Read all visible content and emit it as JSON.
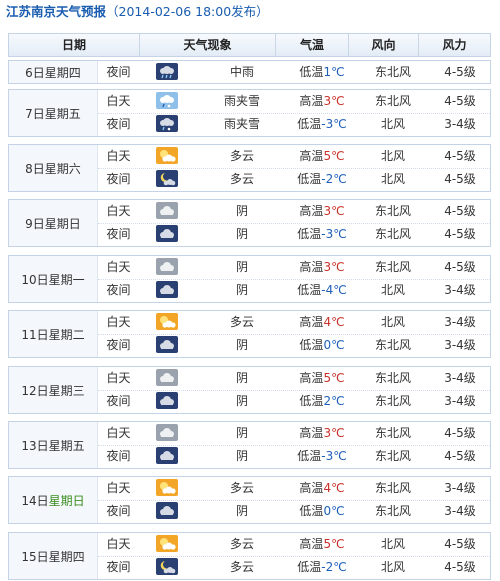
{
  "title": {
    "main": "江苏南京天气预报",
    "sub": "（2014-02-06 18:00发布）"
  },
  "header": {
    "date": "日期",
    "weather": "天气现象",
    "temp": "气温",
    "wind_dir": "风向",
    "wind_force": "风力"
  },
  "days": [
    {
      "date": "6日星期四",
      "rows": [
        {
          "period": "夜间",
          "icon": "night-rain-icon",
          "desc": "中雨",
          "temp_label": "低温",
          "temp": "1℃",
          "type": "low",
          "wind": "东北风",
          "force": "4-5级"
        }
      ]
    },
    {
      "date": "7日星期五",
      "rows": [
        {
          "period": "白天",
          "icon": "sleet-icon",
          "desc": "雨夹雪",
          "temp_label": "高温",
          "temp": "3℃",
          "type": "high",
          "wind": "东北风",
          "force": "4-5级"
        },
        {
          "period": "夜间",
          "icon": "night-sleet-icon",
          "desc": "雨夹雪",
          "temp_label": "低温",
          "temp": "-3℃",
          "type": "low",
          "wind": "北风",
          "force": "3-4级"
        }
      ]
    },
    {
      "date": "8日星期六",
      "rows": [
        {
          "period": "白天",
          "icon": "partly-cloudy-icon",
          "desc": "多云",
          "temp_label": "高温",
          "temp": "5℃",
          "type": "high",
          "wind": "北风",
          "force": "4-5级"
        },
        {
          "period": "夜间",
          "icon": "night-partly-cloudy-icon",
          "desc": "多云",
          "temp_label": "低温",
          "temp": "-2℃",
          "type": "low",
          "wind": "北风",
          "force": "4-5级"
        }
      ]
    },
    {
      "date": "9日星期日",
      "rows": [
        {
          "period": "白天",
          "icon": "overcast-icon",
          "desc": "阴",
          "temp_label": "高温",
          "temp": "3℃",
          "type": "high",
          "wind": "东北风",
          "force": "4-5级"
        },
        {
          "period": "夜间",
          "icon": "night-overcast-icon",
          "desc": "阴",
          "temp_label": "低温",
          "temp": "-3℃",
          "type": "low",
          "wind": "东北风",
          "force": "4-5级"
        }
      ]
    },
    {
      "date": "10日星期一",
      "rows": [
        {
          "period": "白天",
          "icon": "overcast-icon",
          "desc": "阴",
          "temp_label": "高温",
          "temp": "3℃",
          "type": "high",
          "wind": "东北风",
          "force": "4-5级"
        },
        {
          "period": "夜间",
          "icon": "night-overcast-icon",
          "desc": "阴",
          "temp_label": "低温",
          "temp": "-4℃",
          "type": "low",
          "wind": "北风",
          "force": "3-4级"
        }
      ]
    },
    {
      "date": "11日星期二",
      "rows": [
        {
          "period": "白天",
          "icon": "partly-cloudy-icon",
          "desc": "多云",
          "temp_label": "高温",
          "temp": "4℃",
          "type": "high",
          "wind": "北风",
          "force": "3-4级"
        },
        {
          "period": "夜间",
          "icon": "night-overcast-icon",
          "desc": "阴",
          "temp_label": "低温",
          "temp": "0℃",
          "type": "low",
          "wind": "东北风",
          "force": "3-4级"
        }
      ]
    },
    {
      "date": "12日星期三",
      "rows": [
        {
          "period": "白天",
          "icon": "overcast-icon",
          "desc": "阴",
          "temp_label": "高温",
          "temp": "5℃",
          "type": "high",
          "wind": "东北风",
          "force": "3-4级"
        },
        {
          "period": "夜间",
          "icon": "night-overcast-icon",
          "desc": "阴",
          "temp_label": "低温",
          "temp": "2℃",
          "type": "low",
          "wind": "东北风",
          "force": "3-4级"
        }
      ]
    },
    {
      "date": "13日星期五",
      "rows": [
        {
          "period": "白天",
          "icon": "overcast-icon",
          "desc": "阴",
          "temp_label": "高温",
          "temp": "3℃",
          "type": "high",
          "wind": "东北风",
          "force": "4-5级"
        },
        {
          "period": "夜间",
          "icon": "night-overcast-icon",
          "desc": "阴",
          "temp_label": "低温",
          "temp": "-3℃",
          "type": "low",
          "wind": "东北风",
          "force": "4-5级"
        }
      ]
    },
    {
      "date_pre": "14日",
      "date_hl": "星期日",
      "rows": [
        {
          "period": "白天",
          "icon": "partly-cloudy-icon",
          "desc": "多云",
          "temp_label": "高温",
          "temp": "4℃",
          "type": "high",
          "wind": "东北风",
          "force": "3-4级"
        },
        {
          "period": "夜间",
          "icon": "night-overcast-icon",
          "desc": "阴",
          "temp_label": "低温",
          "temp": "0℃",
          "type": "low",
          "wind": "东北风",
          "force": "3-4级"
        }
      ]
    },
    {
      "date": "15日星期四",
      "rows": [
        {
          "period": "白天",
          "icon": "partly-cloudy-icon",
          "desc": "多云",
          "temp_label": "高温",
          "temp": "5℃",
          "type": "high",
          "wind": "北风",
          "force": "4-5级"
        },
        {
          "period": "夜间",
          "icon": "night-partly-cloudy-icon",
          "desc": "多云",
          "temp_label": "低温",
          "temp": "-2℃",
          "type": "low",
          "wind": "北风",
          "force": "4-5级"
        }
      ]
    }
  ]
}
